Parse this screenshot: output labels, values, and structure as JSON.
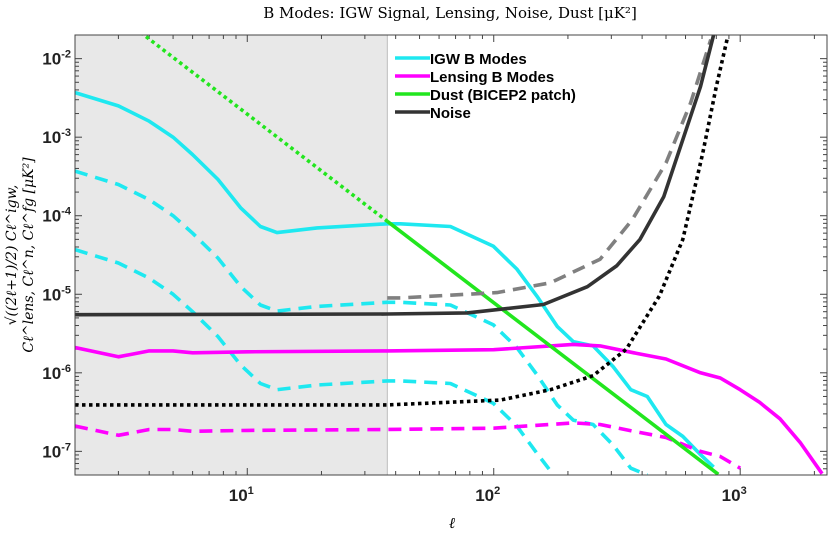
{
  "chart_data": {
    "type": "line",
    "title": "B Modes: IGW Signal, Lensing, Noise, Dust [μK²]",
    "xlabel": "ℓ",
    "ylabel": "√((2ℓ+1)/2) Cℓ^igw, Cℓ^lens, Cℓ^n, Cℓ^fg [μK²]",
    "xscale": "log",
    "yscale": "log",
    "xlim": [
      2,
      2250
    ],
    "ylim": [
      5e-08,
      0.02
    ],
    "shaded_region": {
      "x": [
        2,
        37
      ],
      "color": "#e8e8e8"
    },
    "x_ticks": [
      {
        "value": 10,
        "base": "10",
        "exp": "1"
      },
      {
        "value": 100,
        "base": "10",
        "exp": "2"
      },
      {
        "value": 1000,
        "base": "10",
        "exp": "3"
      }
    ],
    "y_ticks": [
      {
        "value": 0.01,
        "base": "10",
        "exp": "-2"
      },
      {
        "value": 0.001,
        "base": "10",
        "exp": "-3"
      },
      {
        "value": 0.0001,
        "base": "10",
        "exp": "-4"
      },
      {
        "value": 1e-05,
        "base": "10",
        "exp": "-5"
      },
      {
        "value": 1e-06,
        "base": "10",
        "exp": "-6"
      },
      {
        "value": 1e-07,
        "base": "10",
        "exp": "-7"
      }
    ],
    "legend_position": "top-center",
    "legend": [
      {
        "label": "IGW B Modes",
        "color": "#1ee8f0"
      },
      {
        "label": "Lensing B Modes",
        "color": "#ff00ff"
      },
      {
        "label": "Dust (BICEP2 patch)",
        "color": "#22e61e"
      },
      {
        "label": "Noise",
        "color": "#333333"
      }
    ],
    "series": [
      {
        "name": "igw-solid",
        "color": "#1ee8f0",
        "style": "solid",
        "x": [
          2,
          3,
          4,
          5,
          6,
          7.6,
          9.4,
          11.3,
          13.2,
          19.2,
          37,
          41.8,
          66.7,
          99.5,
          124,
          150,
          181,
          210,
          253,
          305,
          360,
          420,
          500,
          585,
          690,
          780
        ],
        "y": [
          0.0037,
          0.0025,
          0.0016,
          0.001,
          0.0006,
          0.00029,
          0.000126,
          7.3e-05,
          6.1e-05,
          7e-05,
          7.9e-05,
          7.9e-05,
          7.3e-05,
          4.1e-05,
          2.1e-05,
          9.4e-06,
          3.9e-06,
          2.5e-06,
          2.2e-06,
          1.2e-06,
          6.1e-07,
          5e-07,
          2.2e-07,
          1.55e-07,
          9.1e-08,
          6.3e-08
        ]
      },
      {
        "name": "igw-dashed-0.1",
        "color": "#1ee8f0",
        "style": "dashed",
        "x": [
          2,
          3,
          4,
          5,
          6,
          7.6,
          9.4,
          11.3,
          13.2,
          19.2,
          37,
          41.8,
          66.7,
          99.5,
          124,
          150,
          181,
          210,
          253,
          305,
          360,
          420
        ],
        "y": [
          0.00037,
          0.00025,
          0.00016,
          0.0001,
          6e-05,
          2.9e-05,
          1.26e-05,
          7.3e-06,
          6.1e-06,
          7e-06,
          7.9e-06,
          7.9e-06,
          7.3e-06,
          4.1e-06,
          2.1e-06,
          9.4e-07,
          3.9e-07,
          2.5e-07,
          2.2e-07,
          1.2e-07,
          6.1e-08,
          5e-08
        ]
      },
      {
        "name": "igw-dashed-0.01",
        "color": "#1ee8f0",
        "style": "dashed",
        "x": [
          2,
          3,
          4,
          5,
          6,
          7.6,
          9.4,
          11.3,
          13.2,
          19.2,
          37,
          41.8,
          66.7,
          99.5,
          124,
          150,
          175
        ],
        "y": [
          3.7e-05,
          2.5e-05,
          1.6e-05,
          1e-05,
          6e-06,
          2.9e-06,
          1.26e-06,
          7.3e-07,
          6.1e-07,
          7e-07,
          7.9e-07,
          7.9e-07,
          7.3e-07,
          4.1e-07,
          2.1e-07,
          9.4e-08,
          5e-08
        ]
      },
      {
        "name": "lensing-solid",
        "color": "#ff00ff",
        "style": "solid",
        "x": [
          2,
          3,
          4,
          5,
          6,
          10,
          37,
          100,
          210,
          270,
          370,
          500,
          690,
          830,
          1000,
          1200,
          1450,
          1750,
          2150
        ],
        "y": [
          2.1e-06,
          1.6e-06,
          1.9e-06,
          1.9e-06,
          1.8e-06,
          1.85e-06,
          1.9e-06,
          1.97e-06,
          2.3e-06,
          2.2e-06,
          1.8e-06,
          1.5e-06,
          1e-06,
          8.6e-07,
          6.1e-07,
          4.2e-07,
          2.6e-07,
          1.3e-07,
          5.2e-08
        ]
      },
      {
        "name": "lensing-dashed",
        "color": "#ff00ff",
        "style": "dashed",
        "x": [
          2,
          3,
          4,
          5,
          6,
          10,
          37,
          100,
          210,
          270,
          370,
          500,
          690,
          830,
          1000
        ],
        "y": [
          2.1e-07,
          1.6e-07,
          1.9e-07,
          1.9e-07,
          1.8e-07,
          1.85e-07,
          1.9e-07,
          1.97e-07,
          2.3e-07,
          2.2e-07,
          1.8e-07,
          1.5e-07,
          1e-07,
          8.6e-08,
          6.1e-08
        ]
      },
      {
        "name": "dust-dotted",
        "color": "#22e61e",
        "style": "dotted",
        "x": [
          3.5,
          10,
          37
        ],
        "y": [
          0.0245,
          0.00196,
          8.5e-05
        ]
      },
      {
        "name": "dust-solid",
        "color": "#22e61e",
        "style": "solid",
        "x": [
          37,
          100,
          815
        ],
        "y": [
          8.5e-05,
          7.8e-06,
          5.1e-08
        ]
      },
      {
        "name": "noise-dashed",
        "color": "#808080",
        "style": "dashed",
        "x": [
          37,
          42,
          103,
          170,
          270,
          365,
          500,
          630,
          760
        ],
        "y": [
          9e-06,
          9e-06,
          1.05e-05,
          1.4e-05,
          2.8e-05,
          8.9e-05,
          0.00047,
          0.00275,
          0.0175
        ]
      },
      {
        "name": "noise-solid",
        "color": "#333333",
        "style": "solid",
        "x": [
          2,
          37,
          78,
          159,
          240,
          315,
          392,
          490,
          585,
          690,
          780
        ],
        "y": [
          5.5e-06,
          5.6e-06,
          5.8e-06,
          7.4e-06,
          1.25e-05,
          2.3e-05,
          5e-05,
          0.000175,
          0.00093,
          0.0044,
          0.02
        ]
      },
      {
        "name": "noise-dotted",
        "color": "#000000",
        "style": "dotted",
        "x": [
          2,
          37,
          106,
          170,
          253,
          345,
          470,
          585,
          705,
          800,
          890
        ],
        "y": [
          3.9e-07,
          3.9e-07,
          4.5e-07,
          6.1e-07,
          9.2e-07,
          2e-06,
          9.5e-06,
          5e-05,
          0.00063,
          0.0044,
          0.019
        ]
      }
    ]
  }
}
